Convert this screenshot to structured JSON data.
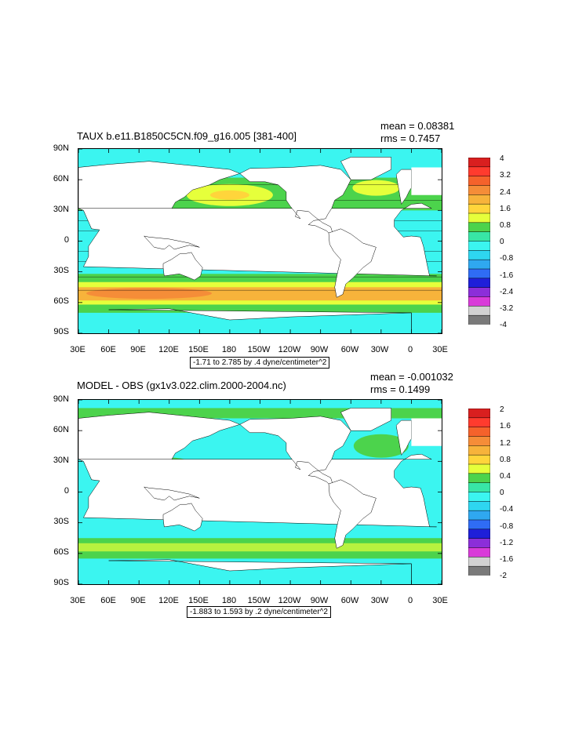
{
  "panels": [
    {
      "title": "TAUX b.e11.B1850C5CN.f09_g16.005 [381-400]",
      "mean": "mean = 0.08381",
      "rms": "rms = 0.7457",
      "subtitle": "-1.71 to 2.785 by .4 dyne/centimeter^2",
      "lat_labels": [
        "90N",
        "60N",
        "30N",
        "0",
        "30S",
        "60S",
        "90S"
      ],
      "lon_labels": [
        "30E",
        "60E",
        "90E",
        "120E",
        "150E",
        "180",
        "150W",
        "120W",
        "90W",
        "60W",
        "30W",
        "0",
        "30E"
      ],
      "colorbar_labels": [
        "4",
        "3.2",
        "2.4",
        "1.6",
        "0.8",
        "0",
        "-0.8",
        "-1.6",
        "-2.4",
        "-3.2",
        "-4"
      ],
      "colorbar_colors": [
        "#d91f1f",
        "#ff3b2e",
        "#f5622b",
        "#f58d38",
        "#f7b33b",
        "#ffd53b",
        "#e6ff3b",
        "#4cd34c",
        "#38e6a6",
        "#3bf5f0",
        "#2ed6f0",
        "#2fa8f0",
        "#2f6cf5",
        "#1f1fd9",
        "#8c2ed9",
        "#d93bd9",
        "#d2d2d2",
        "#7a7a7a"
      ]
    },
    {
      "title": "MODEL - OBS (gx1v3.022.clim.2000-2004.nc)",
      "mean": "mean = -0.001032",
      "rms": "rms = 0.1499",
      "subtitle": "-1.883 to 1.593 by .2 dyne/centimeter^2",
      "lat_labels": [
        "90N",
        "60N",
        "30N",
        "0",
        "30S",
        "60S",
        "90S"
      ],
      "lon_labels": [
        "30E",
        "60E",
        "90E",
        "120E",
        "150E",
        "180",
        "150W",
        "120W",
        "90W",
        "60W",
        "30W",
        "0",
        "30E"
      ],
      "colorbar_labels": [
        "2",
        "1.6",
        "1.2",
        "0.8",
        "0.4",
        "0",
        "-0.4",
        "-0.8",
        "-1.2",
        "-1.6",
        "-2"
      ],
      "colorbar_colors": [
        "#d91f1f",
        "#ff3b2e",
        "#f5622b",
        "#f58d38",
        "#f7b33b",
        "#ffd53b",
        "#e6ff3b",
        "#4cd34c",
        "#38e6a6",
        "#3bf5f0",
        "#2ed6f0",
        "#2fa8f0",
        "#2f6cf5",
        "#1f1fd9",
        "#8c2ed9",
        "#d93bd9",
        "#d2d2d2",
        "#7a7a7a"
      ]
    }
  ],
  "map_colors": {
    "ocean_neg1": "#3bf5f0",
    "ocean_neg2": "#2ed6f0",
    "ocean_zero": "#38e6a6",
    "ocean_pos_low": "#4cd34c",
    "ocean_pos_mid": "#e6ff3b",
    "ocean_pos_high": "#f7b33b",
    "ocean_pos_max": "#f58d38",
    "land": "#ffffff"
  }
}
